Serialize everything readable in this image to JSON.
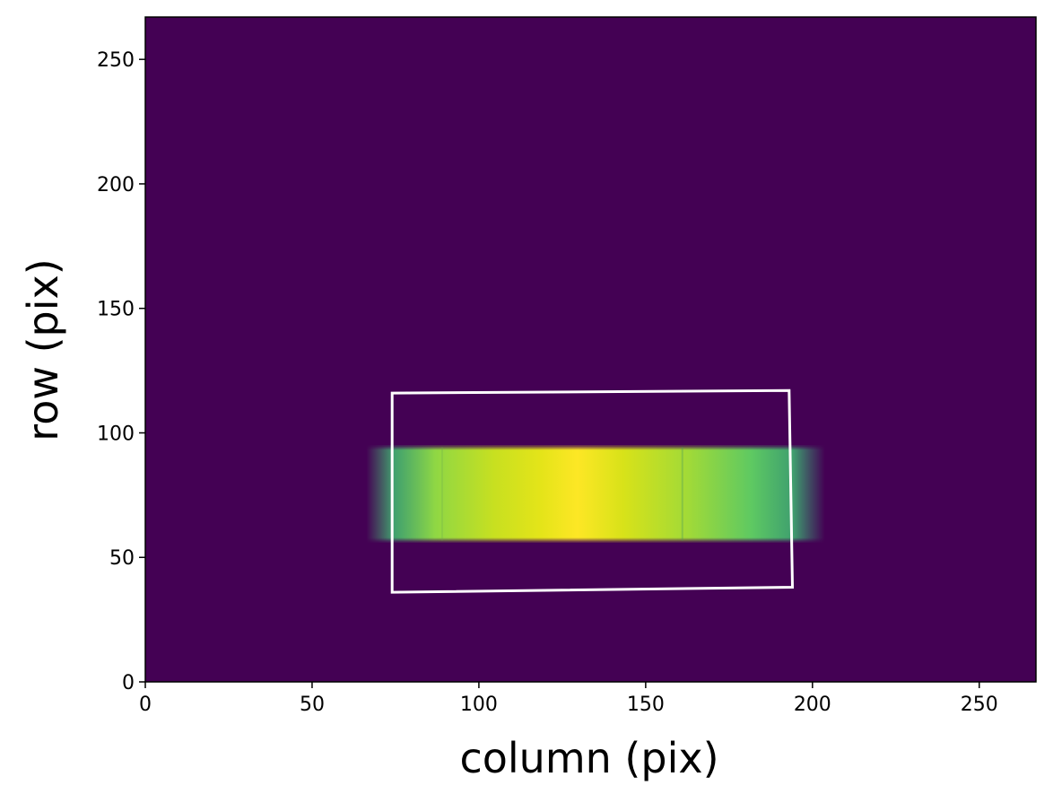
{
  "chart_data": {
    "type": "heatmap",
    "title": "",
    "xlabel": "column (pix)",
    "ylabel": "row (pix)",
    "xlim": [
      0,
      267
    ],
    "ylim": [
      0,
      267
    ],
    "x_ticks": [
      0,
      50,
      100,
      150,
      200,
      250
    ],
    "y_ticks": [
      0,
      50,
      100,
      150,
      200,
      250
    ],
    "x_tick_labels": [
      "0",
      "50",
      "100",
      "150",
      "200",
      "250"
    ],
    "y_tick_labels": [
      "0",
      "50",
      "100",
      "150",
      "200",
      "250"
    ],
    "colormap": "viridis",
    "background_color": "#440154",
    "grid": false,
    "bright_band": {
      "x_range": [
        70,
        200
      ],
      "y_range": [
        56,
        95
      ],
      "peak_x": 127,
      "peak_y": 78,
      "peak_color": "#fde725",
      "edge_color": "#35b779"
    },
    "aperture_box": {
      "color": "#ffffff",
      "corners": [
        [
          74,
          116
        ],
        [
          193,
          117
        ],
        [
          194,
          38
        ],
        [
          74,
          36
        ]
      ]
    }
  }
}
